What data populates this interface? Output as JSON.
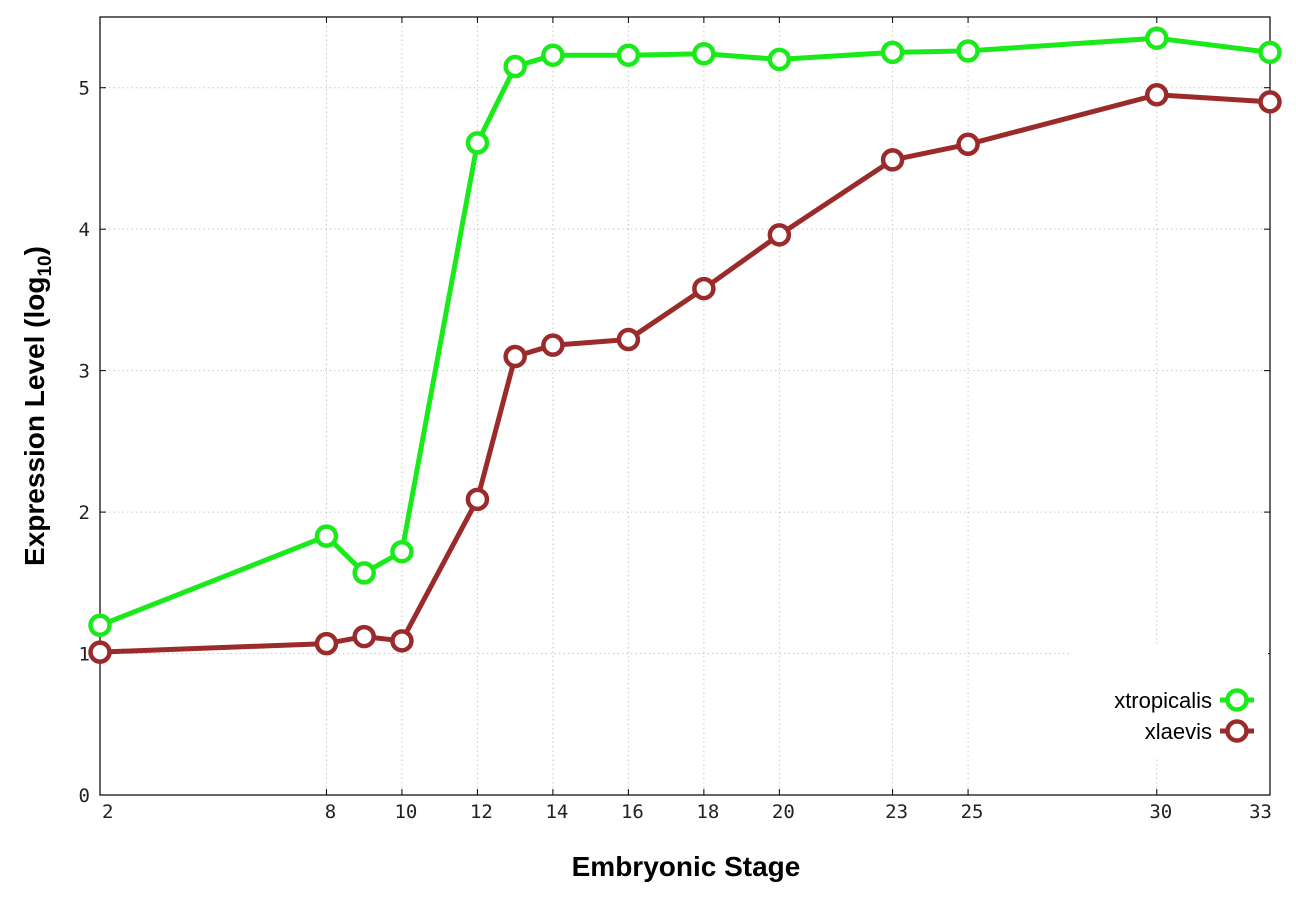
{
  "chart_data": {
    "type": "line",
    "title": "",
    "xlabel": "Embryonic Stage",
    "ylabel": "Expression Level (log",
    "ylabel_sub": "10",
    "ylabel_end": ")",
    "x_ticks": [
      "2",
      "8",
      "10",
      "12",
      "14",
      "16",
      "18",
      "20",
      "23",
      "25",
      "30",
      "33"
    ],
    "y_ticks": [
      "0",
      "1",
      "2",
      "3",
      "4",
      "5"
    ],
    "ylim": [
      0,
      5.5
    ],
    "grid": true,
    "legend_position": "bottom-right",
    "x": [
      2,
      8,
      9,
      10,
      12,
      13,
      14,
      16,
      18,
      20,
      23,
      25,
      30,
      33
    ],
    "series": [
      {
        "name": "xtropicalis",
        "color": "#1aea1a",
        "values": [
          1.2,
          1.83,
          1.57,
          1.72,
          4.61,
          5.15,
          5.23,
          5.23,
          5.24,
          5.2,
          5.25,
          5.26,
          5.35,
          5.25
        ]
      },
      {
        "name": "xlaevis",
        "color": "#9b2b2b",
        "values": [
          1.01,
          1.07,
          1.12,
          1.09,
          2.09,
          3.1,
          3.18,
          3.22,
          3.58,
          3.96,
          4.49,
          4.6,
          4.95,
          4.9
        ]
      }
    ]
  }
}
